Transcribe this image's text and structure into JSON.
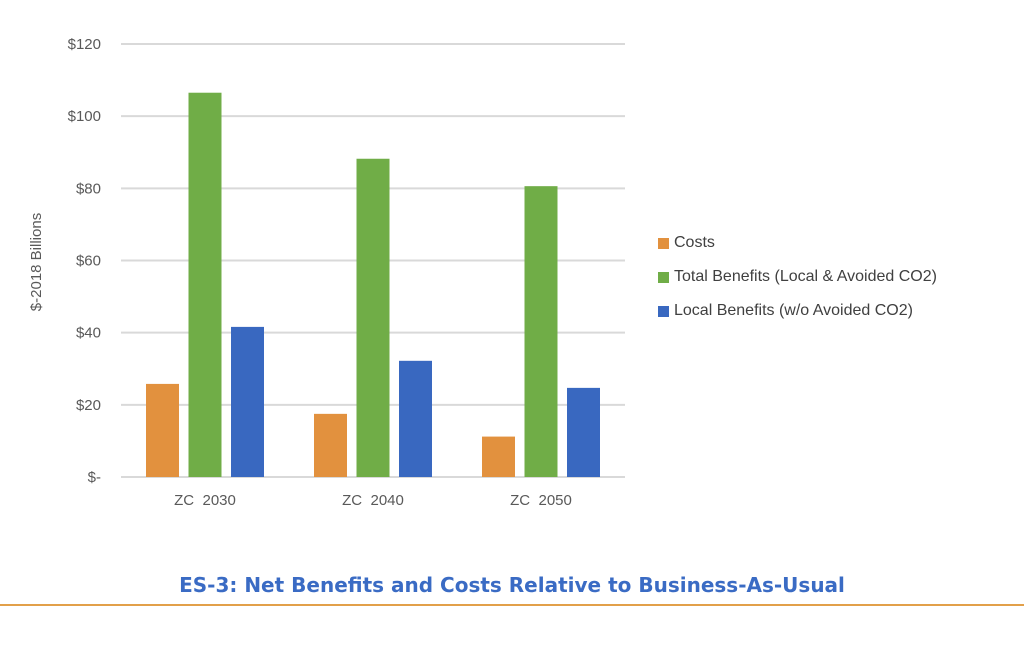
{
  "chart_data": {
    "type": "bar",
    "categories": [
      "ZC  2030",
      "ZC  2040",
      "ZC  2050"
    ],
    "series": [
      {
        "name": "Costs",
        "color": "#e2913e",
        "values": [
          25.8,
          17.5,
          11.2
        ]
      },
      {
        "name": "Total Benefits (Local & Avoided CO2)",
        "color": "#70ad47",
        "values": [
          106.5,
          88.2,
          80.6
        ]
      },
      {
        "name": "Local Benefits (w/o Avoided CO2)",
        "color": "#3968c0",
        "values": [
          41.6,
          32.2,
          24.7
        ]
      }
    ],
    "yticks": [
      "$-",
      "$20",
      "$40",
      "$60",
      "$80",
      "$100",
      "$120"
    ],
    "ylim": [
      0,
      120
    ],
    "ylabel": "$-2018  Billions",
    "xlabel": "",
    "grid": true,
    "legend_position": "right"
  },
  "caption": "ES-3: Net Benefits and Costs Relative to Business-As-Usual"
}
